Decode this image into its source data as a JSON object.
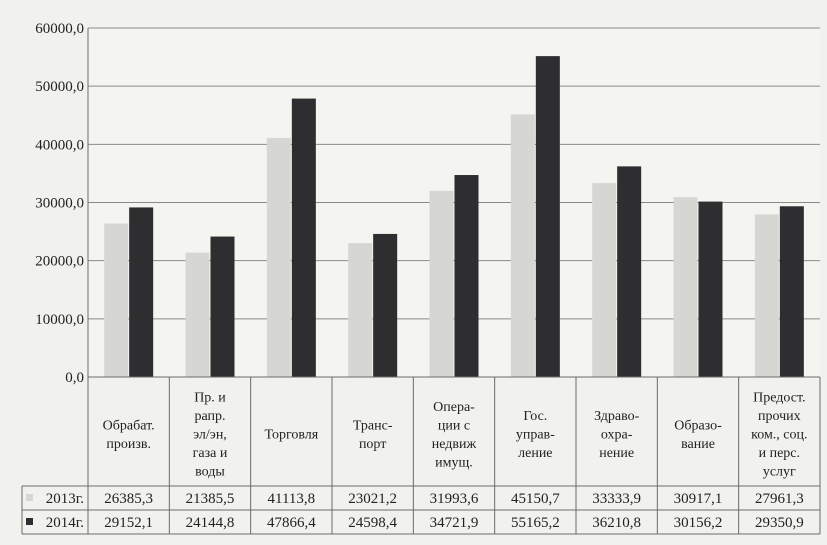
{
  "chart_data": {
    "type": "bar",
    "categories": [
      [
        "Обрабат.",
        "произв."
      ],
      [
        "Пр. и",
        "рапр.",
        "эл/эн,",
        "газа и",
        "воды"
      ],
      [
        "Торговля"
      ],
      [
        "Транс-",
        "порт"
      ],
      [
        "Опера-",
        "ции с",
        "недвиж",
        "имущ."
      ],
      [
        "Гос.",
        "управ-",
        "ление"
      ],
      [
        "Здраво-",
        "охра-",
        "нение"
      ],
      [
        "Образо-",
        "вание"
      ],
      [
        "Предост.",
        "прочих",
        "ком., соц.",
        "и перс.",
        "услуг"
      ]
    ],
    "series": [
      {
        "name": "2013г.",
        "color": "#d6d6d2",
        "values": [
          26385.3,
          21385.5,
          41113.8,
          23021.2,
          31993.6,
          45150.7,
          33333.9,
          30917.1,
          27961.3
        ],
        "labels": [
          "26385,3",
          "21385,5",
          "41113,8",
          "23021,2",
          "31993,6",
          "45150,7",
          "33333,9",
          "30917,1",
          "27961,3"
        ]
      },
      {
        "name": "2014г.",
        "color": "#2e2e30",
        "values": [
          29152.1,
          24144.8,
          47866.4,
          24598.4,
          34721.9,
          55165.2,
          36210.8,
          30156.2,
          29350.9
        ],
        "labels": [
          "29152,1",
          "24144,8",
          "47866,4",
          "24598,4",
          "34721,9",
          "55165,2",
          "36210,8",
          "30156,2",
          "29350,9"
        ]
      }
    ],
    "ylim": [
      0,
      60000
    ],
    "yticks": [
      "0,0",
      "10000,0",
      "20000,0",
      "30000,0",
      "40000,0",
      "50000,0",
      "60000,0"
    ],
    "grid": true,
    "legend": "data-table"
  }
}
